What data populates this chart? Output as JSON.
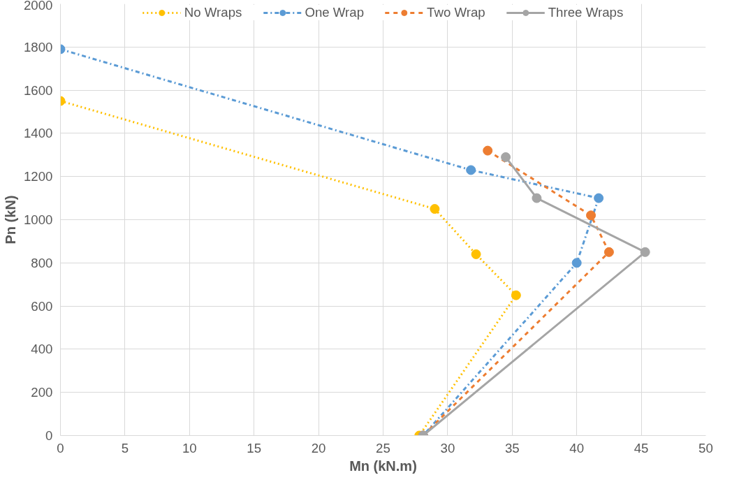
{
  "chart_data": {
    "type": "line",
    "xlabel": "Mn (kN.m)",
    "ylabel": "Pn (kN)",
    "xlim": [
      0,
      50
    ],
    "xticks": [
      0,
      5,
      10,
      15,
      20,
      25,
      30,
      35,
      40,
      45,
      50
    ],
    "ylim": [
      0,
      2000
    ],
    "yticks": [
      0,
      200,
      400,
      600,
      800,
      1000,
      1200,
      1400,
      1600,
      1800,
      2000
    ],
    "grid": true,
    "legend": "top",
    "marker": "circle",
    "series": [
      {
        "name": "No Wraps",
        "color": "#ffc000",
        "line_style": "dotted",
        "x": [
          0,
          29.0,
          32.2,
          35.3,
          27.8
        ],
        "values": [
          1550,
          1050,
          840,
          650,
          0
        ]
      },
      {
        "name": "One Wrap",
        "color": "#5b9bd5",
        "line_style": "dashdot",
        "x": [
          0,
          31.8,
          41.7,
          40.0,
          28.1
        ],
        "values": [
          1790,
          1230,
          1100,
          800,
          0
        ]
      },
      {
        "name": "Two Wrap",
        "color": "#ed7d31",
        "line_style": "dashed",
        "x": [
          33.1,
          41.1,
          42.5,
          28.1
        ],
        "values": [
          1320,
          1020,
          850,
          0
        ]
      },
      {
        "name": "Three Wraps",
        "color": "#a5a5a5",
        "line_style": "solid",
        "x": [
          34.5,
          36.9,
          45.3,
          28.1
        ],
        "values": [
          1290,
          1100,
          850,
          0
        ]
      }
    ]
  }
}
